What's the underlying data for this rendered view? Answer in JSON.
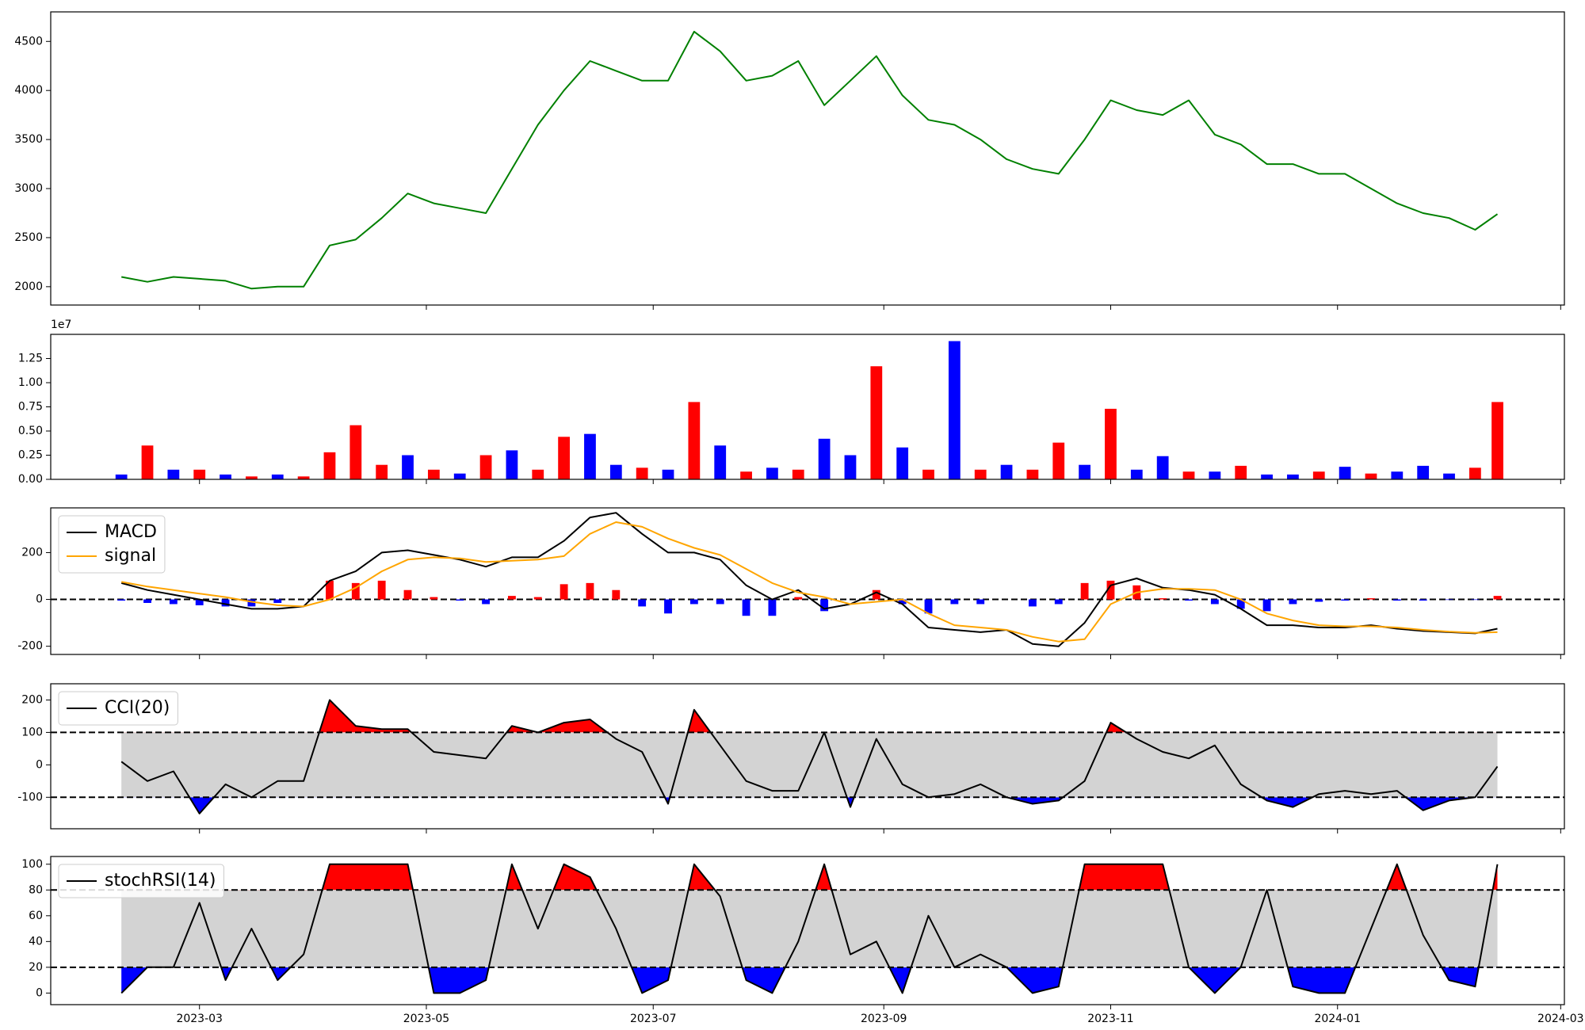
{
  "chart_data": {
    "type": "subplots",
    "x": [
      "2023-02-08",
      "2023-02-15",
      "2023-02-22",
      "2023-03-01",
      "2023-03-08",
      "2023-03-15",
      "2023-03-22",
      "2023-03-29",
      "2023-04-05",
      "2023-04-12",
      "2023-04-19",
      "2023-04-26",
      "2023-05-03",
      "2023-05-10",
      "2023-05-17",
      "2023-05-24",
      "2023-05-31",
      "2023-06-07",
      "2023-06-14",
      "2023-06-21",
      "2023-06-28",
      "2023-07-05",
      "2023-07-12",
      "2023-07-19",
      "2023-07-26",
      "2023-08-02",
      "2023-08-09",
      "2023-08-16",
      "2023-08-23",
      "2023-08-30",
      "2023-09-06",
      "2023-09-13",
      "2023-09-20",
      "2023-09-27",
      "2023-10-04",
      "2023-10-11",
      "2023-10-18",
      "2023-10-25",
      "2023-11-01",
      "2023-11-08",
      "2023-11-15",
      "2023-11-22",
      "2023-11-29",
      "2023-12-06",
      "2023-12-13",
      "2023-12-20",
      "2023-12-27",
      "2024-01-03",
      "2024-01-10",
      "2024-01-17",
      "2024-01-24",
      "2024-01-31",
      "2024-02-07",
      "2024-02-13"
    ],
    "xlim": [
      "2023-01-20",
      "2024-03-02"
    ],
    "xticks": [
      {
        "value": "2023-03-01",
        "label": "2023-03"
      },
      {
        "value": "2023-05-01",
        "label": "2023-05"
      },
      {
        "value": "2023-07-01",
        "label": "2023-07"
      },
      {
        "value": "2023-09-01",
        "label": "2023-09"
      },
      {
        "value": "2023-11-01",
        "label": "2023-11"
      },
      {
        "value": "2024-01-01",
        "label": "2024-01"
      },
      {
        "value": "2024-03-01",
        "label": "2024-03"
      }
    ],
    "panels": [
      {
        "type": "line",
        "ylim": [
          1813,
          4801
        ],
        "yticks": [
          2000,
          2500,
          3000,
          3500,
          4000,
          4500
        ],
        "series": [
          {
            "color": "#008000",
            "values": [
              2100,
              2050,
              2100,
              2080,
              2060,
              1980,
              2000,
              2000,
              2420,
              2480,
              2700,
              2950,
              2850,
              2800,
              2750,
              3200,
              3650,
              4000,
              4300,
              4200,
              4100,
              4100,
              4600,
              4400,
              4100,
              4150,
              4300,
              3850,
              4100,
              4350,
              3950,
              3700,
              3650,
              3500,
              3300,
              3200,
              3150,
              3500,
              3900,
              3800,
              3750,
              3900,
              3550,
              3450,
              3250,
              3250,
              3150,
              3150,
              3000,
              2850,
              2750,
              2700,
              2580,
              2740
            ]
          }
        ]
      },
      {
        "type": "bar",
        "ylim": [
          0,
          1.5
        ],
        "offset_label": "1e7",
        "yticks": [
          {
            "value": 0,
            "label": "0.00"
          },
          {
            "value": 0.25,
            "label": "0.25"
          },
          {
            "value": 0.5,
            "label": "0.50"
          },
          {
            "value": 0.75,
            "label": "0.75"
          },
          {
            "value": 1,
            "label": "1.00"
          },
          {
            "value": 1.25,
            "label": "1.25"
          }
        ],
        "values": [
          0.05,
          0.35,
          0.1,
          0.1,
          0.05,
          0.03,
          0.05,
          0.03,
          0.28,
          0.56,
          0.15,
          0.25,
          0.1,
          0.06,
          0.25,
          0.3,
          0.1,
          0.44,
          0.47,
          0.15,
          0.12,
          0.1,
          0.8,
          0.35,
          0.08,
          0.12,
          0.1,
          0.42,
          0.25,
          1.17,
          0.33,
          0.1,
          1.43,
          0.1,
          0.15,
          0.1,
          0.38,
          0.15,
          0.73,
          0.1,
          0.24,
          0.08,
          0.08,
          0.14,
          0.05,
          0.05,
          0.08,
          0.13,
          0.06,
          0.08,
          0.14,
          0.06,
          0.12,
          0.8
        ],
        "colors": [
          "#0000ff",
          "#ff0000",
          "#0000ff",
          "#ff0000",
          "#0000ff",
          "#ff0000",
          "#0000ff",
          "#ff0000",
          "#ff0000",
          "#ff0000",
          "#ff0000",
          "#0000ff",
          "#ff0000",
          "#0000ff",
          "#ff0000",
          "#0000ff",
          "#ff0000",
          "#ff0000",
          "#0000ff",
          "#0000ff",
          "#ff0000",
          "#0000ff",
          "#ff0000",
          "#0000ff",
          "#ff0000",
          "#0000ff",
          "#ff0000",
          "#0000ff",
          "#0000ff",
          "#ff0000",
          "#0000ff",
          "#ff0000",
          "#0000ff",
          "#ff0000",
          "#0000ff",
          "#ff0000",
          "#ff0000",
          "#0000ff",
          "#ff0000",
          "#0000ff",
          "#0000ff",
          "#ff0000",
          "#0000ff",
          "#ff0000",
          "#0000ff",
          "#0000ff",
          "#ff0000",
          "#0000ff",
          "#ff0000",
          "#0000ff",
          "#0000ff",
          "#0000ff",
          "#ff0000",
          "#ff0000"
        ]
      },
      {
        "type": "macd",
        "ylim": [
          -235,
          391
        ],
        "yticks": [
          -200,
          0,
          200
        ],
        "hlines": [
          0
        ],
        "legend": "upper left",
        "series": [
          {
            "name": "MACD",
            "color": "#000000",
            "values": [
              70,
              40,
              20,
              0,
              -20,
              -40,
              -40,
              -30,
              80,
              120,
              200,
              210,
              190,
              170,
              140,
              180,
              180,
              250,
              350,
              370,
              280,
              200,
              200,
              170,
              60,
              0,
              40,
              -40,
              -20,
              30,
              -20,
              -120,
              -130,
              -140,
              -130,
              -190,
              -200,
              -100,
              60,
              90,
              50,
              40,
              20,
              -40,
              -110,
              -110,
              -120,
              -120,
              -110,
              -125,
              -135,
              -140,
              -145,
              -125
            ]
          },
          {
            "name": "signal",
            "color": "#ffa500",
            "values": [
              75,
              55,
              40,
              25,
              10,
              -10,
              -25,
              -30,
              0,
              50,
              120,
              170,
              180,
              175,
              160,
              165,
              170,
              185,
              280,
              330,
              310,
              260,
              220,
              190,
              130,
              70,
              30,
              10,
              -20,
              -10,
              0,
              -60,
              -110,
              -120,
              -130,
              -160,
              -180,
              -170,
              -20,
              30,
              45,
              45,
              40,
              0,
              -60,
              -90,
              -110,
              -115,
              -115,
              -120,
              -130,
              -138,
              -143,
              -140
            ]
          }
        ],
        "histogram": {
          "positive_color": "#ff0000",
          "negative_color": "#0000ff",
          "values": [
            -5,
            -15,
            -20,
            -25,
            -30,
            -30,
            -15,
            0,
            80,
            70,
            80,
            40,
            10,
            -5,
            -20,
            15,
            10,
            65,
            70,
            40,
            -30,
            -60,
            -20,
            -20,
            -70,
            -70,
            10,
            -50,
            0,
            40,
            -20,
            -60,
            -20,
            -20,
            0,
            -30,
            -20,
            70,
            80,
            60,
            5,
            -5,
            -20,
            -40,
            -50,
            -20,
            -10,
            -5,
            5,
            -5,
            -5,
            -2,
            -2,
            15
          ]
        }
      },
      {
        "type": "oscillator",
        "ylim": [
          -197,
          250
        ],
        "yticks": [
          -100,
          0,
          100,
          200
        ],
        "band": [
          -100,
          100
        ],
        "band_color": "#d3d3d3",
        "above_color": "#ff0000",
        "below_color": "#0000ff",
        "legend": "upper left",
        "series": [
          {
            "name": "CCI(20)",
            "color": "#000000",
            "values": [
              10,
              -50,
              -20,
              -150,
              -60,
              -100,
              -50,
              -50,
              200,
              120,
              110,
              110,
              40,
              30,
              20,
              120,
              100,
              130,
              140,
              80,
              40,
              -120,
              170,
              60,
              -50,
              -80,
              -80,
              100,
              -130,
              80,
              -60,
              -100,
              -90,
              -60,
              -100,
              -120,
              -110,
              -50,
              130,
              80,
              40,
              20,
              60,
              -60,
              -110,
              -130,
              -90,
              -80,
              -90,
              -80,
              -140,
              -110,
              -100,
              -5
            ]
          }
        ]
      },
      {
        "type": "oscillator",
        "ylim": [
          -9,
          106
        ],
        "yticks": [
          0,
          20,
          40,
          60,
          80,
          100
        ],
        "band": [
          20,
          80
        ],
        "band_color": "#d3d3d3",
        "above_color": "#ff0000",
        "below_color": "#0000ff",
        "legend": "upper left",
        "series": [
          {
            "name": "stochRSI(14)",
            "color": "#000000",
            "values": [
              0,
              20,
              20,
              70,
              10,
              50,
              10,
              30,
              100,
              100,
              100,
              100,
              0,
              0,
              10,
              100,
              50,
              100,
              90,
              50,
              0,
              10,
              100,
              75,
              10,
              0,
              40,
              100,
              30,
              40,
              0,
              60,
              20,
              30,
              20,
              0,
              5,
              100,
              100,
              100,
              100,
              20,
              0,
              20,
              80,
              5,
              0,
              0,
              50,
              100,
              45,
              10,
              5,
              100
            ]
          }
        ]
      }
    ]
  }
}
